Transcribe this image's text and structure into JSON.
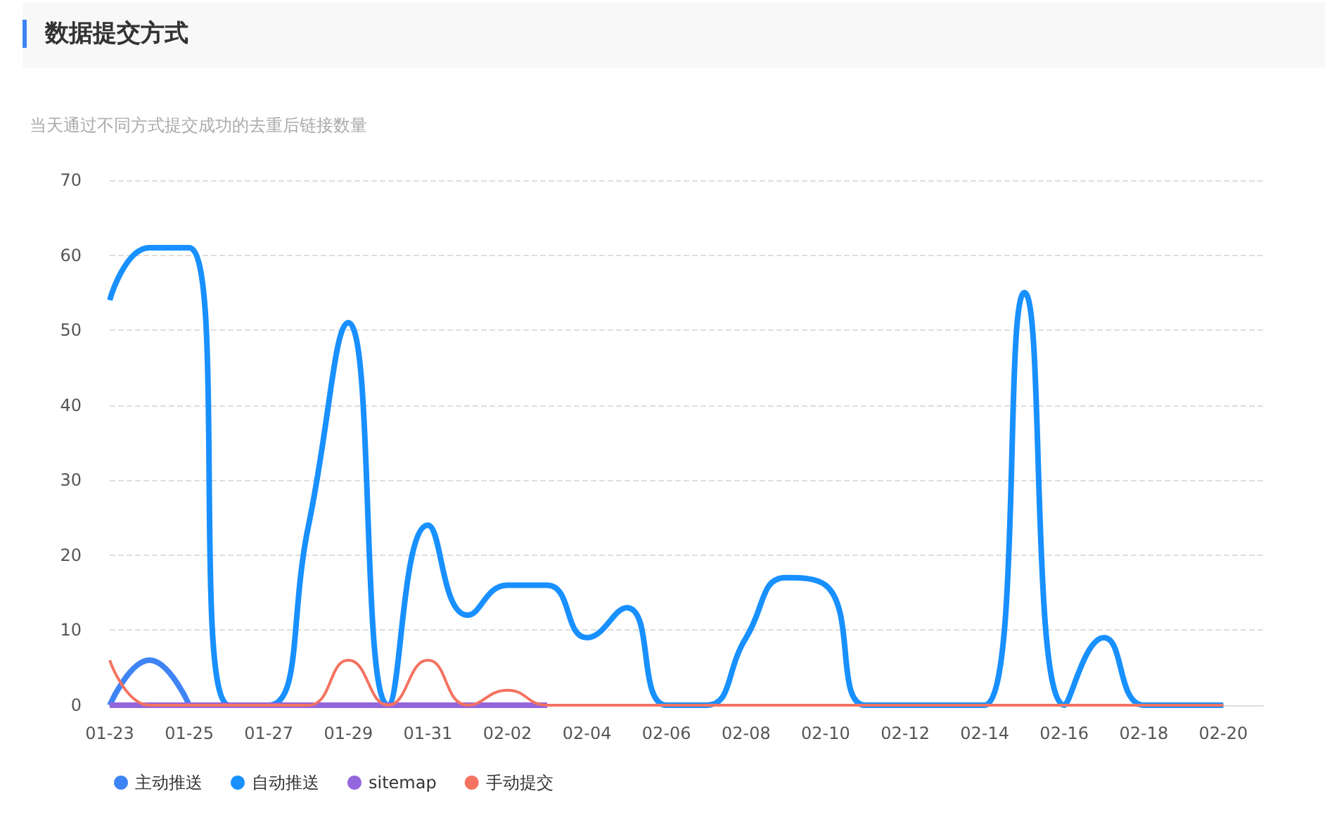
{
  "chart_data": {
    "type": "line",
    "title": "数据提交方式",
    "subtitle": "当天通过不同方式提交成功的去重后链接数量",
    "categories": [
      "01-23",
      null,
      "01-25",
      null,
      "01-27",
      null,
      "01-29",
      null,
      "01-31",
      null,
      "02-02",
      null,
      "02-04",
      null,
      "02-06",
      null,
      "02-08",
      null,
      "02-10",
      null,
      "02-12",
      null,
      "02-14",
      null,
      "02-16",
      null,
      "02-18",
      null,
      "02-20",
      null
    ],
    "series": [
      {
        "name": "主动推送",
        "color": "#3f84f5",
        "values": [
          0,
          6,
          0,
          null,
          null,
          null,
          null,
          null,
          null,
          null,
          null,
          null,
          null,
          null,
          null,
          null,
          null,
          null,
          null,
          null,
          null,
          null,
          null,
          null,
          null,
          null,
          null,
          null,
          null,
          null
        ]
      },
      {
        "name": "自动推送",
        "color": "#1890ff",
        "values": [
          54,
          61,
          61,
          0,
          0,
          24,
          51,
          0,
          24,
          12,
          16,
          16,
          9,
          13,
          0,
          0,
          9,
          17,
          16,
          0,
          0,
          0,
          0,
          55,
          0,
          9,
          0,
          0,
          0,
          null
        ]
      },
      {
        "name": "sitemap",
        "color": "#9466dc",
        "values": [
          0,
          0,
          0,
          0,
          0,
          0,
          0,
          0,
          0,
          0,
          0,
          0,
          null,
          null,
          null,
          null,
          null,
          null,
          null,
          null,
          null,
          null,
          null,
          null,
          null,
          null,
          null,
          null,
          null,
          null
        ]
      },
      {
        "name": "手动提交",
        "color": "#f47361",
        "values": [
          6,
          0,
          0,
          0,
          0,
          0,
          6,
          0,
          6,
          0,
          2,
          0,
          0,
          0,
          0,
          0,
          0,
          0,
          0,
          0,
          0,
          0,
          0,
          0,
          0,
          0,
          0,
          0,
          0,
          null
        ]
      }
    ],
    "ylim": [
      0,
      70
    ],
    "yticks": [
      0,
      10,
      20,
      30,
      40,
      50,
      60,
      70
    ],
    "grid": "y",
    "legend": "bottom left",
    "marker": "none",
    "line_style": "solid"
  }
}
